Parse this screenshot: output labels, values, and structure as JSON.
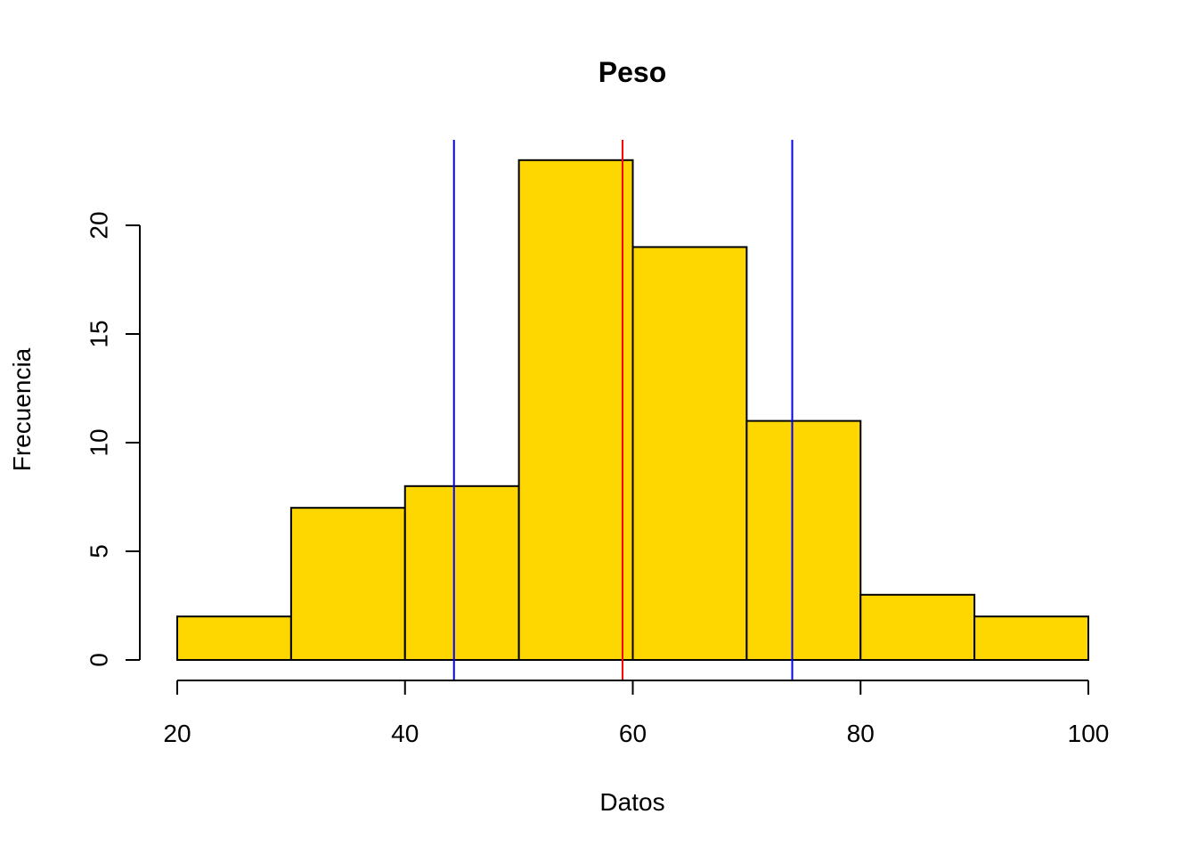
{
  "chart_data": {
    "type": "bar",
    "title": "Peso",
    "xlabel": "Datos",
    "ylabel": "Frecuencia",
    "bins": [
      [
        20,
        30
      ],
      [
        30,
        40
      ],
      [
        40,
        50
      ],
      [
        50,
        60
      ],
      [
        60,
        70
      ],
      [
        70,
        80
      ],
      [
        80,
        90
      ],
      [
        90,
        100
      ]
    ],
    "values": [
      2,
      7,
      8,
      23,
      19,
      11,
      3,
      2
    ],
    "xlim": [
      20,
      100
    ],
    "ylim": [
      0,
      23
    ],
    "x_ticks": [
      20,
      40,
      60,
      80,
      100
    ],
    "y_ticks": [
      0,
      5,
      10,
      15,
      20
    ],
    "grid": false,
    "vertical_lines": [
      {
        "x": 44.3,
        "color": "#0000ff"
      },
      {
        "x": 59.1,
        "color": "#ff0000"
      },
      {
        "x": 74.0,
        "color": "#0000ff"
      }
    ],
    "bar_color": "#ffd700"
  }
}
